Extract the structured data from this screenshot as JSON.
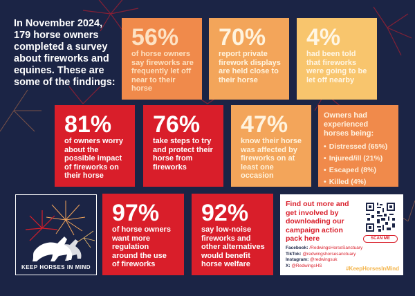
{
  "intro": "In November 2024, 179 horse owners completed a survey about fireworks and equines. These are some of the findings:",
  "tiles": {
    "t56": {
      "value": "56%",
      "text": "of horse owners say fireworks are frequently let off near to their horse"
    },
    "t70": {
      "value": "70%",
      "text": "report private firework displays are held close to their horse"
    },
    "t4": {
      "value": "4%",
      "text": "had been told that fireworks were going to be let off nearby"
    },
    "t81": {
      "value": "81%",
      "text": "of owners worry about the possible impact of fireworks on their horse"
    },
    "t76": {
      "value": "76%",
      "text": "take steps to try and protect their horse from fireworks"
    },
    "t47": {
      "value": "47%",
      "text": "know their horse was affected by fireworks on at least one occasion"
    },
    "t97": {
      "value": "97%",
      "text": "of horse owners want more regulation around the use of fireworks"
    },
    "t92": {
      "value": "92%",
      "text": "say low-noise fireworks and other alternatives would benefit horse welfare"
    }
  },
  "experienced": {
    "heading": "Owners had experienced horses being:",
    "items": [
      "Distressed (65%)",
      "Injured/ill (21%)",
      "Escaped (8%)",
      "Killed (4%)"
    ]
  },
  "logo": {
    "caption": "KEEP HORSES IN MIND"
  },
  "cta": {
    "heading": "Find out more and get involved by downloading our campaign action pack here",
    "scan_label": "SCAN ME",
    "facebook_label": "Facebook:",
    "facebook": "/RedwingsHorseSanctuary",
    "tiktok_label": "TikTok:",
    "tiktok": "@redwingshorsesanctuary",
    "instagram_label": "Instagram:",
    "instagram": "@redwingsuk",
    "x_label": "X:",
    "x": "@RedwingsHS",
    "hashtag": "#KeepHorsesInMind"
  },
  "colors": {
    "background": "#1b2445",
    "red": "#d91e2a",
    "orange": "#f08a4b",
    "light_orange": "#f3a55a",
    "yellow": "#f8c56d"
  }
}
